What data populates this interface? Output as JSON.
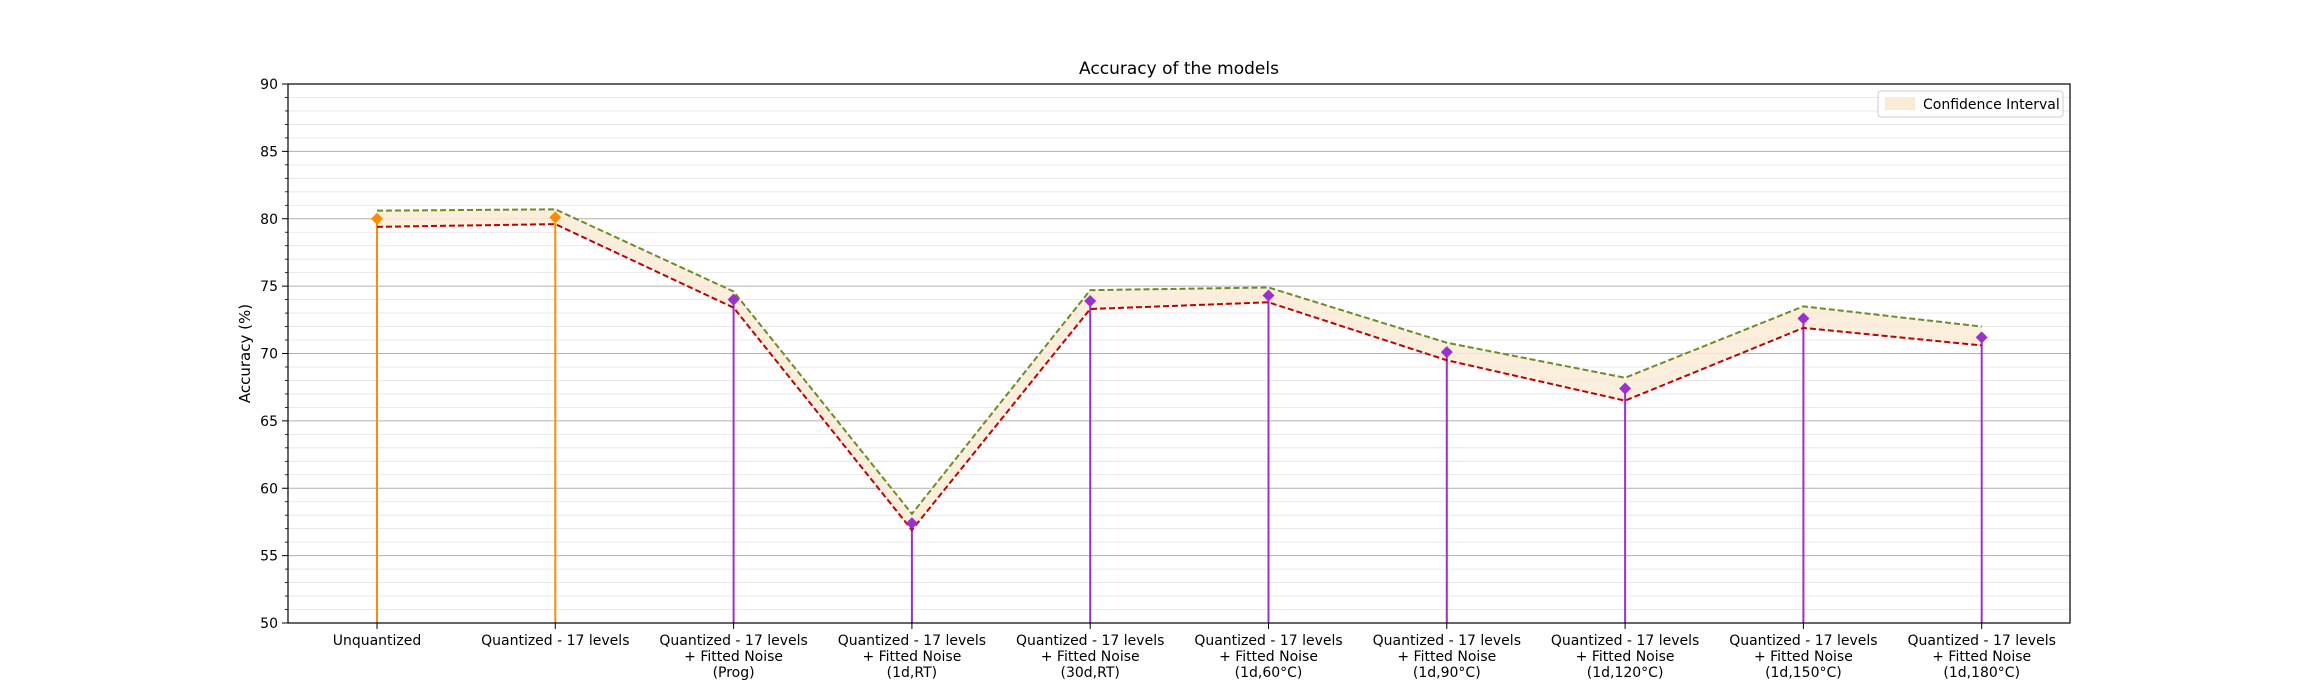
{
  "chart_data": {
    "type": "line",
    "title": "Accuracy of the models",
    "xlabel": "",
    "ylabel": "Accuracy (%)",
    "ylim": [
      50,
      90
    ],
    "yticks": [
      50,
      55,
      60,
      65,
      70,
      75,
      80,
      85,
      90
    ],
    "grid": {
      "major": true,
      "minor": true,
      "axis": "y"
    },
    "legend": {
      "placement": "top-right",
      "entries": [
        "Confidence Interval"
      ]
    },
    "categories": [
      [
        "Unquantized"
      ],
      [
        "Quantized - 17 levels"
      ],
      [
        "Quantized - 17 levels",
        "+ Fitted Noise",
        "(Prog)"
      ],
      [
        "Quantized - 17 levels",
        "+ Fitted Noise",
        "(1d,RT)"
      ],
      [
        "Quantized - 17 levels",
        "+ Fitted Noise",
        "(30d,RT)"
      ],
      [
        "Quantized - 17 levels",
        "+ Fitted Noise",
        "(1d,60°C)"
      ],
      [
        "Quantized - 17 levels",
        "+ Fitted Noise",
        "(1d,90°C)"
      ],
      [
        "Quantized - 17 levels",
        "+ Fitted Noise",
        "(1d,120°C)"
      ],
      [
        "Quantized - 17 levels",
        "+ Fitted Noise",
        "(1d,150°C)"
      ],
      [
        "Quantized - 17 levels",
        "+ Fitted Noise",
        "(1d,180°C)"
      ]
    ],
    "accuracy": [
      80.0,
      80.1,
      74.0,
      57.4,
      73.9,
      74.3,
      70.1,
      67.4,
      72.6,
      71.2
    ],
    "ci_upper": [
      80.6,
      80.7,
      74.6,
      58.1,
      74.7,
      74.9,
      70.8,
      68.2,
      73.5,
      72.0
    ],
    "ci_lower": [
      79.4,
      79.6,
      73.4,
      56.9,
      73.3,
      73.8,
      69.5,
      66.5,
      71.9,
      70.6
    ],
    "marker_colors": [
      "#ff8c00",
      "#ff8c00",
      "#9932cc",
      "#9932cc",
      "#9932cc",
      "#9932cc",
      "#9932cc",
      "#9932cc",
      "#9932cc",
      "#9932cc"
    ],
    "colors": {
      "upper_line": "#6b8e23",
      "lower_line": "#c00000",
      "band_fill": "#faebd7",
      "stem_unquantized": "#ff8c00",
      "stem_quantized": "#9932cc"
    }
  }
}
